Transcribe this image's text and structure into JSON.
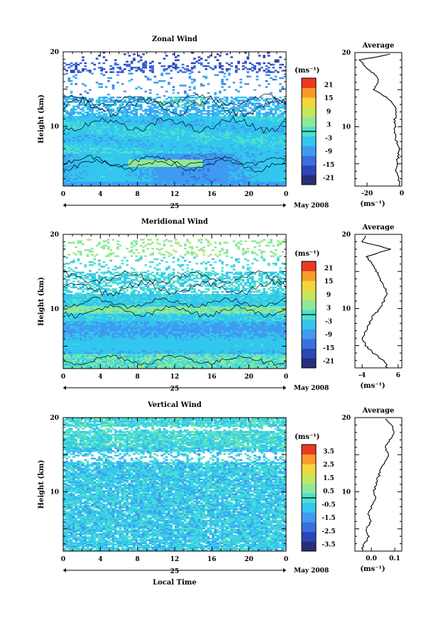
{
  "colors": {
    "colorbar": [
      "#262f7a",
      "#2d46b8",
      "#3a6fe0",
      "#3f9bf0",
      "#33c6ee",
      "#4de0d0",
      "#8ee89a",
      "#c8e65a",
      "#f4d63a",
      "#f99a2a",
      "#ea3a1e"
    ],
    "background": "#ffffff",
    "contour": "#000000"
  },
  "chart_data": [
    {
      "type": "heatmap",
      "title": "Zonal Wind",
      "ylabel": "Height (km)",
      "x_ticks": [
        "0",
        "4",
        "8",
        "12",
        "16",
        "20",
        "0"
      ],
      "y_ticks": [
        "20",
        "10"
      ],
      "date_center": "25",
      "date_label": "May 2008",
      "xlim": [
        0,
        24
      ],
      "ylim": [
        2,
        20
      ],
      "colorbar": {
        "unit": "(ms⁻¹)",
        "ticks": [
          "21",
          "15",
          "9",
          "3",
          "-3",
          "-9",
          "-15",
          "-21"
        ],
        "range": [
          -24,
          24
        ]
      },
      "pattern": "zonal",
      "profile": {
        "title": "Average",
        "xlabel": "(ms⁻¹)",
        "x_ticks": [
          "-20",
          "0"
        ],
        "y_ticks": [
          "20",
          "10"
        ],
        "xlim": [
          -27,
          0
        ],
        "height_km": [
          2,
          3,
          4,
          5,
          6,
          7,
          8,
          9,
          10,
          11,
          12,
          13,
          14,
          15,
          16,
          17,
          18,
          19,
          20
        ],
        "values": [
          -1,
          -2,
          -3,
          -3,
          -2,
          -2,
          -3,
          -4,
          -4,
          -4,
          -3,
          -5,
          -9,
          -16,
          -13,
          -15,
          -21,
          -24,
          -2
        ]
      }
    },
    {
      "type": "heatmap",
      "title": "Meridional Wind",
      "ylabel": "Height (km)",
      "x_ticks": [
        "0",
        "4",
        "8",
        "12",
        "16",
        "20",
        "0"
      ],
      "y_ticks": [
        "20",
        "10"
      ],
      "date_center": "25",
      "date_label": "May 2008",
      "xlim": [
        0,
        24
      ],
      "ylim": [
        2,
        20
      ],
      "colorbar": {
        "unit": "(ms⁻¹)",
        "ticks": [
          "21",
          "15",
          "9",
          "3",
          "-3",
          "-9",
          "-15",
          "-21"
        ],
        "range": [
          -24,
          24
        ]
      },
      "pattern": "meridional",
      "profile": {
        "title": "Average",
        "xlabel": "(ms⁻¹)",
        "x_ticks": [
          "-4",
          "6"
        ],
        "y_ticks": [
          "20",
          "10"
        ],
        "xlim": [
          -6,
          7
        ],
        "height_km": [
          2,
          3,
          4,
          5,
          6,
          7,
          8,
          9,
          10,
          11,
          12,
          13,
          14,
          15,
          16,
          17,
          18,
          19,
          20
        ],
        "values": [
          3,
          2,
          -1,
          -3,
          -4,
          -3,
          -2,
          -1,
          1,
          2,
          3,
          2,
          1,
          0,
          -1,
          -3,
          4,
          -4,
          -3
        ]
      }
    },
    {
      "type": "heatmap",
      "title": "Vertical Wind",
      "ylabel": "Height (km)",
      "xlabel": "Local Time",
      "x_ticks": [
        "0",
        "4",
        "8",
        "12",
        "16",
        "20",
        "0"
      ],
      "y_ticks": [
        "20",
        "10"
      ],
      "date_center": "25",
      "date_label": "May 2008",
      "xlim": [
        0,
        24
      ],
      "ylim": [
        2,
        20
      ],
      "colorbar": {
        "unit": "(ms⁻¹)",
        "ticks": [
          "3.5",
          "2.5",
          "1.5",
          "0.5",
          "-0.5",
          "-1.5",
          "-2.5",
          "-3.5"
        ],
        "range": [
          -4,
          4
        ]
      },
      "pattern": "vertical",
      "profile": {
        "title": "Average",
        "xlabel": "(ms⁻¹)",
        "x_ticks": [
          "0.0",
          "0.1"
        ],
        "y_ticks": [
          "20",
          "10"
        ],
        "xlim": [
          -0.07,
          0.13
        ],
        "height_km": [
          2,
          3,
          4,
          5,
          6,
          7,
          8,
          9,
          10,
          11,
          12,
          13,
          14,
          15,
          16,
          17,
          18,
          19,
          20
        ],
        "values": [
          -0.04,
          -0.03,
          -0.01,
          -0.02,
          0.0,
          -0.01,
          0.0,
          0.02,
          0.01,
          0.02,
          0.03,
          0.04,
          0.06,
          0.07,
          0.06,
          0.08,
          0.1,
          0.09,
          0.05
        ]
      }
    }
  ]
}
